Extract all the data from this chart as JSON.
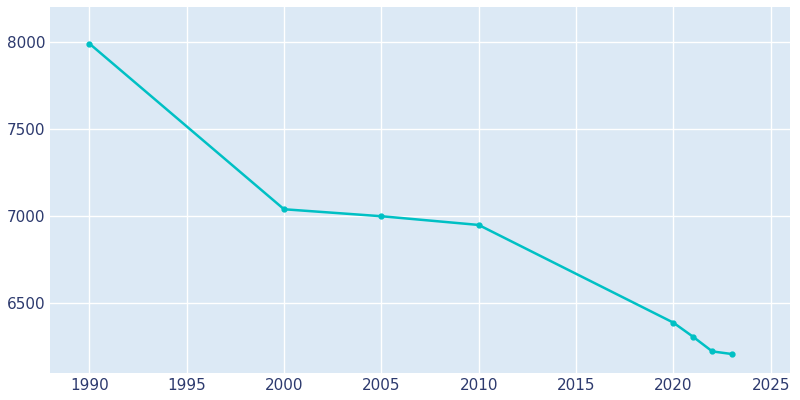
{
  "years": [
    1990,
    2000,
    2005,
    2010,
    2020,
    2021,
    2022,
    2023
  ],
  "population": [
    7990,
    7040,
    7000,
    6950,
    6390,
    6310,
    6225,
    6210
  ],
  "line_color": "#00C0C4",
  "marker_color": "#00C0C4",
  "axes_background_color": "#dce9f5",
  "figure_background_color": "#ffffff",
  "grid_color": "#ffffff",
  "tick_color": "#2d3a6e",
  "xlim": [
    1988,
    2026
  ],
  "ylim": [
    6100,
    8200
  ],
  "yticks": [
    6500,
    7000,
    7500,
    8000
  ],
  "xticks": [
    1990,
    1995,
    2000,
    2005,
    2010,
    2015,
    2020,
    2025
  ],
  "line_width": 1.8,
  "marker_size": 3.5
}
